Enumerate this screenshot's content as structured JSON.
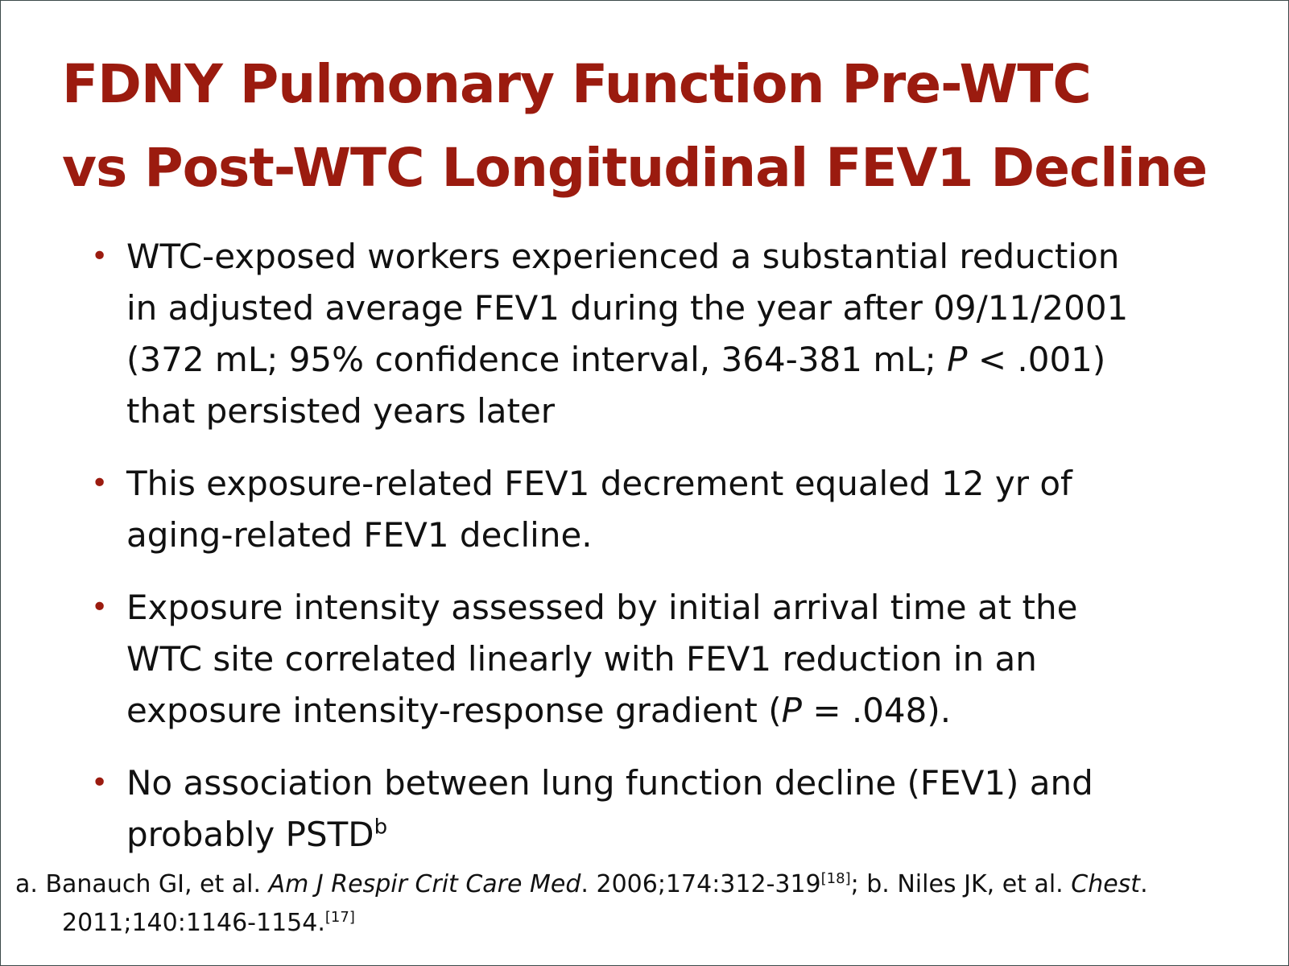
{
  "title": {
    "line1": "FDNY Pulmonary Function Pre-WTC",
    "line2": "vs Post-WTC Longitudinal FEV1 Decline"
  },
  "bullets": [
    {
      "lines": [
        "WTC-exposed workers experienced a substantial reduction",
        "in adjusted average FEV1 during the year after 09/11/2001"
      ],
      "line3_a": "(372 mL; 95% confidence interval, 364-381 mL; ",
      "line3_p": "P",
      "line3_b": " < .001)",
      "line4": "that persisted years later"
    },
    {
      "lines": [
        "This exposure-related FEV1 decrement equaled 12 yr of",
        "aging-related FEV1 decline."
      ]
    },
    {
      "lines": [
        "Exposure intensity assessed by initial arrival time at the",
        "WTC site correlated linearly with FEV1 reduction in an"
      ],
      "line3_a": "exposure intensity-response gradient (",
      "line3_p": "P",
      "line3_b": " = .048)."
    },
    {
      "lines": [
        "No association between lung function decline (FEV1) and"
      ],
      "line2_text": "probably PSTD",
      "line2_sup": "b"
    }
  ],
  "footnote": {
    "a_prefix": "a. Banauch GI, et al. ",
    "a_journal": "Am J Respir Crit Care Med",
    "a_rest": ". 2006;174:312-319",
    "a_ref": "[18]",
    "b_prefix": "; b. Niles JK, et al. ",
    "b_journal": "Chest",
    "b_dot": ".",
    "line2": "2011;140:1146-1154.",
    "b_ref": "[17]"
  },
  "colors": {
    "title": "#9b1b0f",
    "bullet_marker": "#9b1b0f",
    "text": "#111111",
    "border": "#3d4a4a"
  }
}
